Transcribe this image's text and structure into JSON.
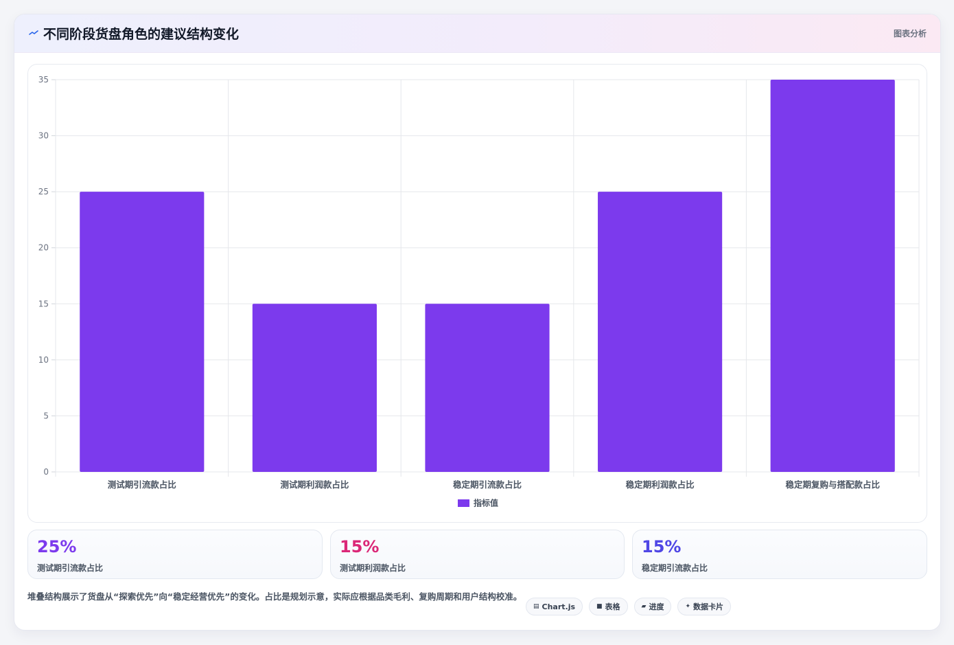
{
  "header": {
    "title": "不同阶段货盘角色的建议结构变化",
    "tag": "图表分析",
    "icon": "trend-line-icon"
  },
  "chart_data": {
    "type": "bar",
    "categories": [
      "测试期引流款占比",
      "测试期利润款占比",
      "稳定期引流款占比",
      "稳定期利润款占比",
      "稳定期复购与搭配款占比"
    ],
    "series": [
      {
        "name": "指标值",
        "values": [
          25,
          15,
          15,
          25,
          35
        ],
        "color": "#7c3aed"
      }
    ],
    "ylim": [
      0,
      35
    ],
    "yticks": [
      0,
      5,
      10,
      15,
      20,
      25,
      30,
      35
    ],
    "grid": true,
    "legend_position": "bottom",
    "title": "",
    "xlabel": "",
    "ylabel": ""
  },
  "stats": [
    {
      "value": "25%",
      "label": "测试期引流款占比",
      "color": "#7c3aed"
    },
    {
      "value": "15%",
      "label": "测试期利润款占比",
      "color": "#db2777"
    },
    {
      "value": "15%",
      "label": "稳定期引流款占比",
      "color": "#4f46e5"
    }
  ],
  "note": "堆叠结构展示了货盘从“探索优先”向“稳定经营优先”的变化。占比是规划示意，实际应根据品类毛利、复购周期和用户结构校准。",
  "chips": [
    {
      "icon": "table-icon",
      "glyph": "▤",
      "label": "Chart.js"
    },
    {
      "icon": "grid-icon",
      "glyph": "■",
      "label": "表格"
    },
    {
      "icon": "progress-icon",
      "glyph": "▰",
      "label": "进度"
    },
    {
      "icon": "sparkle-icon",
      "glyph": "✦",
      "label": "数据卡片"
    }
  ]
}
